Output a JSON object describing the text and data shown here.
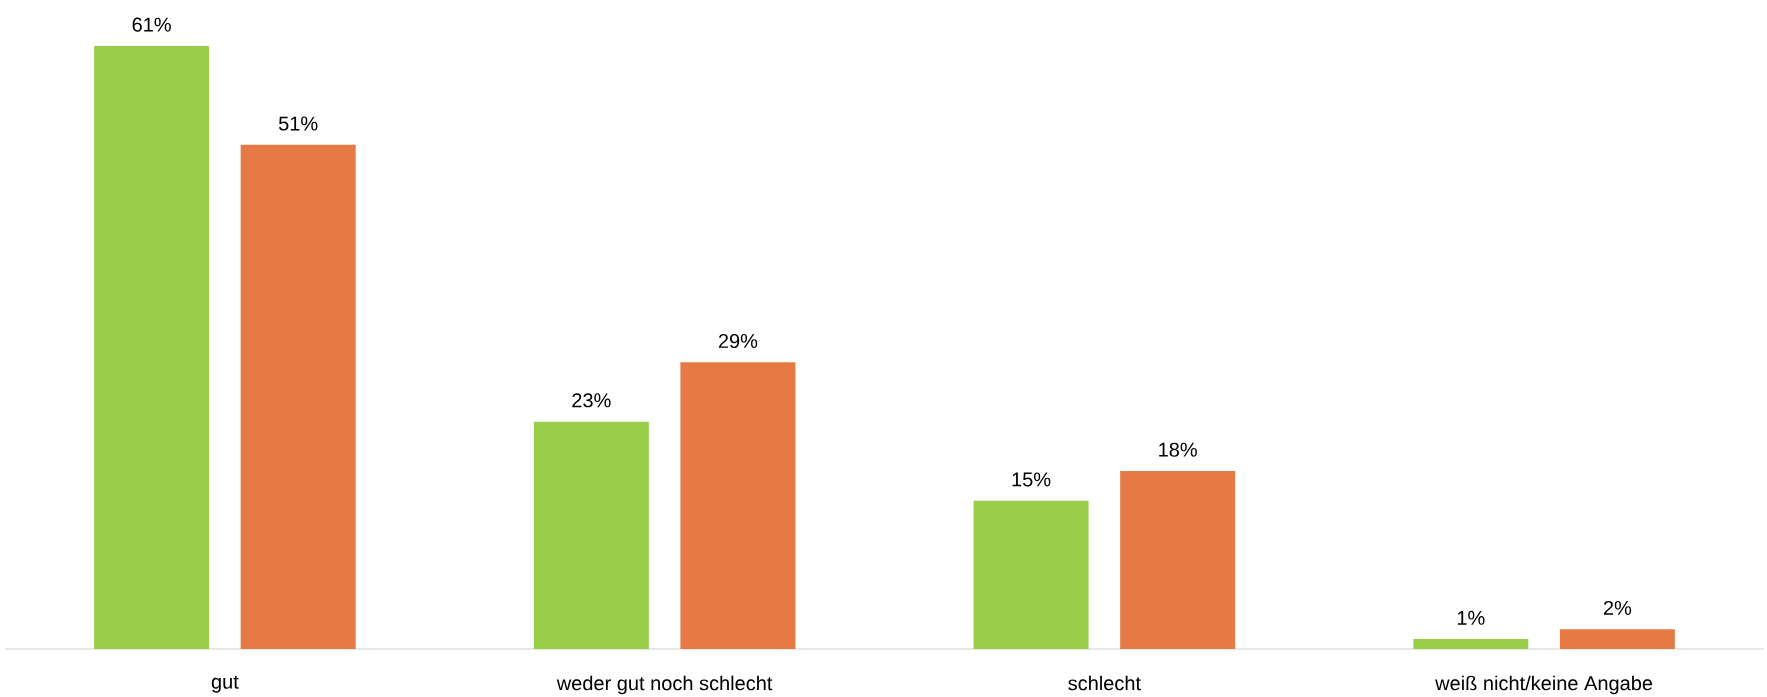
{
  "chart_data": {
    "type": "bar",
    "categories": [
      "gut",
      "weder gut noch schlecht",
      "schlecht",
      "weiß nicht/keine Angabe"
    ],
    "series": [
      {
        "color": "#9acd49",
        "values": [
          61,
          23,
          15,
          1
        ],
        "value_labels": [
          "61%",
          "23%",
          "15%",
          "1%"
        ]
      },
      {
        "color": "#e67a45",
        "values": [
          51,
          29,
          18,
          2
        ],
        "value_labels": [
          "51%",
          "29%",
          "18%",
          "2%"
        ]
      }
    ]
  }
}
